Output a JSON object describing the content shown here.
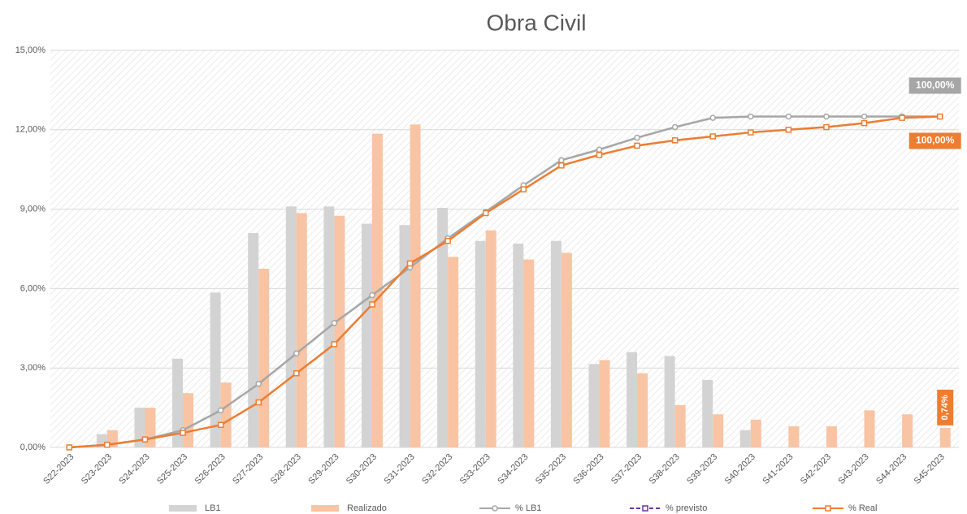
{
  "chart_data": {
    "type": "combo",
    "title": "Obra Civil",
    "categories": [
      "S22-2023",
      "S23-2023",
      "S24-2023",
      "S25-2023",
      "S26-2023",
      "S27-2023",
      "S28-2023",
      "S29-2023",
      "S30-2023",
      "S31-2023",
      "S32-2023",
      "S33-2023",
      "S34-2023",
      "S35-2023",
      "S36-2023",
      "S37-2023",
      "S38-2023",
      "S39-2023",
      "S40-2023",
      "S41-2023",
      "S42-2023",
      "S43-2023",
      "S44-2023",
      "S45-2023"
    ],
    "series": [
      {
        "name": "LB1",
        "type": "bar",
        "color": "#d3d3d3",
        "values": [
          0,
          0.5,
          1.5,
          3.35,
          5.85,
          8.1,
          9.1,
          9.1,
          8.45,
          8.4,
          9.05,
          7.8,
          7.7,
          7.8,
          3.15,
          3.6,
          3.45,
          2.55,
          0.65,
          0,
          0,
          0,
          0,
          0
        ]
      },
      {
        "name": "Realizado",
        "type": "bar",
        "color": "#f8c4a4",
        "values": [
          0,
          0.65,
          1.5,
          2.05,
          2.45,
          6.75,
          8.85,
          8.75,
          11.85,
          12.2,
          7.2,
          8.2,
          7.1,
          7.35,
          3.3,
          2.8,
          1.6,
          1.25,
          1.05,
          0.8,
          0.8,
          1.4,
          1.25,
          0.74
        ],
        "value_labels": [
          null,
          null,
          null,
          null,
          null,
          null,
          null,
          null,
          null,
          null,
          null,
          null,
          null,
          null,
          null,
          null,
          null,
          null,
          null,
          null,
          null,
          null,
          null,
          "0,74%"
        ]
      },
      {
        "name": "% LB1",
        "type": "line",
        "axis": "y2",
        "color": "#a6a6a6",
        "values": [
          0,
          0.8,
          2.4,
          5.2,
          11.2,
          19.2,
          28.4,
          37.6,
          46,
          54.4,
          63.2,
          71.2,
          79.2,
          86.8,
          90,
          93.6,
          96.8,
          99.6,
          100,
          100,
          100,
          100,
          100,
          100
        ],
        "value_labels": [
          null,
          null,
          null,
          null,
          null,
          null,
          null,
          null,
          null,
          null,
          null,
          null,
          null,
          null,
          null,
          null,
          null,
          null,
          null,
          null,
          null,
          null,
          null,
          "100,00%"
        ]
      },
      {
        "name": "% previsto",
        "type": "line",
        "axis": "y2",
        "color": "#7030a0",
        "values": [
          null,
          null,
          null,
          null,
          null,
          null,
          null,
          null,
          null,
          null,
          null,
          null,
          null,
          null,
          null,
          null,
          null,
          null,
          null,
          null,
          null,
          null,
          null,
          null
        ]
      },
      {
        "name": "% Real",
        "type": "line",
        "axis": "y2",
        "color": "#ed7d31",
        "values": [
          0,
          0.8,
          2.4,
          4.4,
          6.8,
          13.6,
          22.4,
          31.2,
          43.2,
          55.6,
          62.4,
          70.8,
          78,
          85.2,
          88.4,
          91.2,
          92.8,
          94,
          95.2,
          96,
          96.8,
          98,
          99.6,
          100
        ],
        "value_labels": [
          null,
          null,
          null,
          null,
          null,
          null,
          null,
          null,
          null,
          null,
          null,
          null,
          null,
          null,
          null,
          null,
          null,
          null,
          null,
          null,
          null,
          null,
          null,
          "100,00%"
        ]
      }
    ],
    "ylim": [
      0,
      15
    ],
    "yticks": [
      {
        "value": 0,
        "label": "0,00%"
      },
      {
        "value": 3,
        "label": "3,00%"
      },
      {
        "value": 6,
        "label": "6,00%"
      },
      {
        "value": 9,
        "label": "9,00%"
      },
      {
        "value": 12,
        "label": "12,00%"
      },
      {
        "value": 15,
        "label": "15,00%"
      }
    ],
    "y2lim": [
      0,
      120
    ],
    "grid": true
  }
}
